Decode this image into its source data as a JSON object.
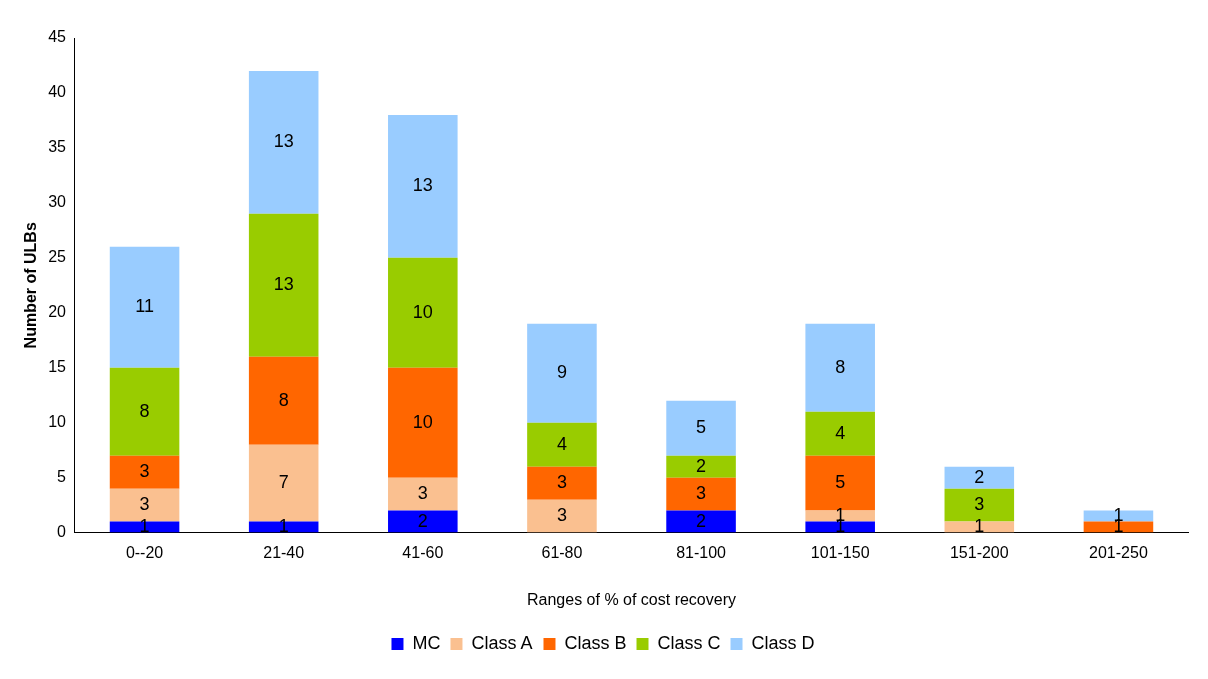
{
  "chart_data": {
    "type": "bar",
    "stacked": true,
    "xlabel": "Ranges of % of cost recovery",
    "ylabel": "Number of ULBs",
    "categories": [
      "0--20",
      "21-40",
      "41-60",
      "61-80",
      "81-100",
      "101-150",
      "151-200",
      "201-250"
    ],
    "series": [
      {
        "name": "MC",
        "color": "#0000ff",
        "values": [
          1,
          1,
          2,
          0,
          2,
          1,
          0,
          0
        ],
        "value_labels": [
          "1",
          "1",
          "2",
          null,
          "2",
          "1",
          null,
          null
        ]
      },
      {
        "name": "Class A",
        "color": "#fac090",
        "values": [
          3,
          7,
          3,
          3,
          0,
          1,
          1,
          0
        ],
        "value_labels": [
          "3",
          "7",
          "3",
          "3",
          null,
          "1",
          "1",
          null
        ]
      },
      {
        "name": "Class B",
        "color": "#ff6600",
        "values": [
          3,
          8,
          10,
          3,
          3,
          5,
          0,
          1
        ],
        "value_labels": [
          "3",
          "8",
          "10",
          "3",
          "3",
          "5",
          null,
          "1"
        ]
      },
      {
        "name": "Class C",
        "color": "#99cc00",
        "values": [
          8,
          13,
          10,
          4,
          2,
          4,
          3,
          0
        ],
        "value_labels": [
          "8",
          "13",
          "10",
          "4",
          "2",
          "4",
          "3",
          null
        ]
      },
      {
        "name": "Class D",
        "color": "#99ccff",
        "values": [
          11,
          13,
          13,
          9,
          5,
          8,
          2,
          1
        ],
        "value_labels": [
          "11",
          "13",
          "13",
          "9",
          "5",
          "8",
          "2",
          "1"
        ]
      }
    ],
    "ylim": [
      0,
      45
    ],
    "yticks": [
      0,
      5,
      10,
      15,
      20,
      25,
      30,
      35,
      40,
      45
    ],
    "grid": false,
    "legend": "bottom"
  }
}
